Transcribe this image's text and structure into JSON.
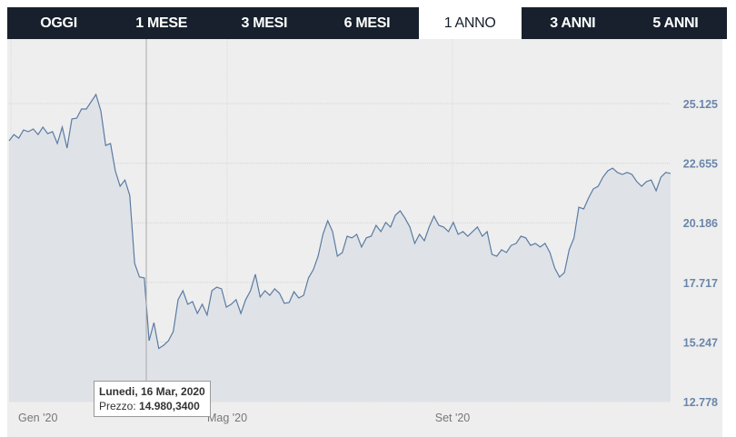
{
  "tabs": [
    {
      "label": "OGGI",
      "active": false
    },
    {
      "label": "1 MESE",
      "active": false
    },
    {
      "label": "3 MESI",
      "active": false
    },
    {
      "label": "6 MESI",
      "active": false
    },
    {
      "label": "1 ANNO",
      "active": true
    },
    {
      "label": "3 ANNI",
      "active": false
    },
    {
      "label": "5 ANNI",
      "active": false
    }
  ],
  "tooltip": {
    "date": "Lunedi, 16 Mar, 2020",
    "price_label": "Prezzo:",
    "price_value": "14.980,3400"
  },
  "colors": {
    "line": "#5b7ba3",
    "fill": "#dfe3e8",
    "axis_label": "#6a86aa",
    "tab_bg": "#17202c"
  },
  "chart_data": {
    "type": "area",
    "ylim": [
      12.778,
      25.125
    ],
    "yticks": [
      "25.125",
      "22.655",
      "20.186",
      "17.717",
      "15.247",
      "12.778"
    ],
    "ytick_values": [
      25.125,
      22.655,
      20.186,
      17.717,
      15.247,
      12.778
    ],
    "xticks": [
      "Gen '20",
      "Mag '20",
      "Set '20"
    ],
    "grid": true,
    "values": [
      23.58,
      23.84,
      23.69,
      24.03,
      23.96,
      24.07,
      23.84,
      24.15,
      23.88,
      23.96,
      23.47,
      24.15,
      23.28,
      24.49,
      24.52,
      24.9,
      24.9,
      25.2,
      25.5,
      24.82,
      23.39,
      23.47,
      22.34,
      21.7,
      21.96,
      21.32,
      18.5,
      17.94,
      17.9,
      15.3,
      16.05,
      14.98,
      15.11,
      15.3,
      15.68,
      17.0,
      17.37,
      16.81,
      16.92,
      16.43,
      16.81,
      16.36,
      17.37,
      17.52,
      17.45,
      16.69,
      16.81,
      17.0,
      16.43,
      17.0,
      17.37,
      18.05,
      17.11,
      17.37,
      17.18,
      17.45,
      17.26,
      16.85,
      16.88,
      17.33,
      17.07,
      17.18,
      17.9,
      18.24,
      18.8,
      19.71,
      20.27,
      19.82,
      18.8,
      18.95,
      19.63,
      19.56,
      19.71,
      19.18,
      19.56,
      19.63,
      20.08,
      19.82,
      20.2,
      20.01,
      20.5,
      20.68,
      20.38,
      20.01,
      19.33,
      19.71,
      19.44,
      20.01,
      20.46,
      20.08,
      20.01,
      19.82,
      20.2,
      19.71,
      19.82,
      19.63,
      19.82,
      20.01,
      19.63,
      19.82,
      18.88,
      18.8,
      19.07,
      18.95,
      19.25,
      19.33,
      19.63,
      19.56,
      19.25,
      19.33,
      19.18,
      19.33,
      18.95,
      18.31,
      17.94,
      18.12,
      19.07,
      19.56,
      20.83,
      20.76,
      21.21,
      21.59,
      21.7,
      22.08,
      22.34,
      22.45,
      22.27,
      22.19,
      22.27,
      22.19,
      21.89,
      21.7,
      21.89,
      21.96,
      21.51,
      22.08,
      22.27,
      22.23
    ]
  }
}
